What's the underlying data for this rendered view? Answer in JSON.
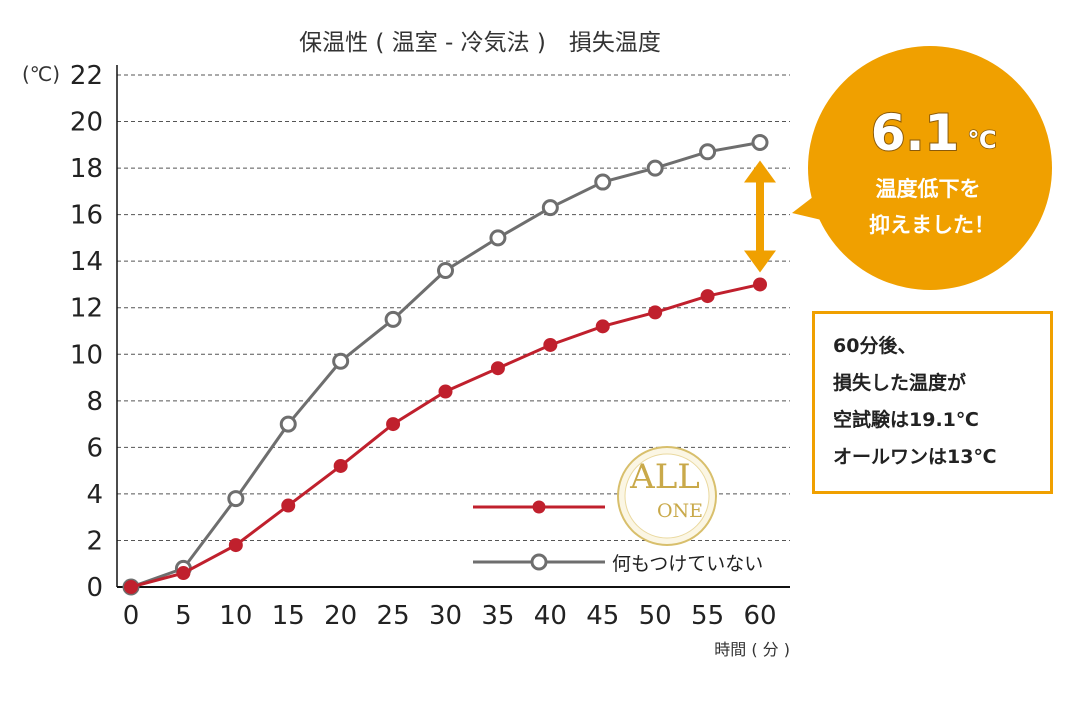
{
  "title": "保温性 ( 温室 - 冷気法 )　損失温度",
  "y_unit": "(℃)",
  "x_axis_title": "時間 ( 分 )",
  "legend": {
    "series_with_logo": "",
    "logo_text": "ALL ONE",
    "plain": "何もつけていない"
  },
  "bubble": {
    "value": "6.1",
    "unit": "℃",
    "line1": "温度低下を",
    "line2": "抑えました！"
  },
  "note": {
    "line1": "60分後、",
    "line2": "損失した温度が",
    "line3": "空試験は19.1℃",
    "line4": "オールワンは13℃"
  },
  "colors": {
    "red": "#c0202d",
    "gray": "#6e6e6e",
    "orange": "#f0a000",
    "arrow": "#f0a000",
    "gold": "#c9a94a"
  },
  "chart_data": {
    "type": "line",
    "title": "保温性 ( 温室 - 冷気法 )　損失温度",
    "xlabel": "時間 ( 分 )",
    "ylabel": "(℃)",
    "x": [
      0,
      5,
      10,
      15,
      20,
      25,
      30,
      35,
      40,
      45,
      50,
      55,
      60
    ],
    "xticks": [
      "0",
      "5",
      "10",
      "15",
      "20",
      "25",
      "30",
      "35",
      "40",
      "45",
      "50",
      "55",
      "60"
    ],
    "yticks": [
      "0",
      "2",
      "4",
      "6",
      "8",
      "10",
      "12",
      "14",
      "16",
      "18",
      "20",
      "22"
    ],
    "xlim": [
      0,
      60
    ],
    "ylim": [
      0,
      22
    ],
    "grid": "horizontal dashed",
    "legend_position": "lower-right",
    "series": [
      {
        "name": "何もつけていない",
        "color": "#6e6e6e",
        "marker": "hollow-circle",
        "values": [
          0,
          0.8,
          3.8,
          7.0,
          9.7,
          11.5,
          13.6,
          15.0,
          16.3,
          17.4,
          18.0,
          18.7,
          19.1
        ]
      },
      {
        "name": "",
        "color": "#c0202d",
        "marker": "filled-circle",
        "values": [
          0,
          0.6,
          1.8,
          3.5,
          5.2,
          7.0,
          8.4,
          9.4,
          10.4,
          11.2,
          11.8,
          12.5,
          13.0
        ]
      }
    ],
    "annotation": {
      "difference": "6.1℃",
      "at_x": 60
    }
  }
}
